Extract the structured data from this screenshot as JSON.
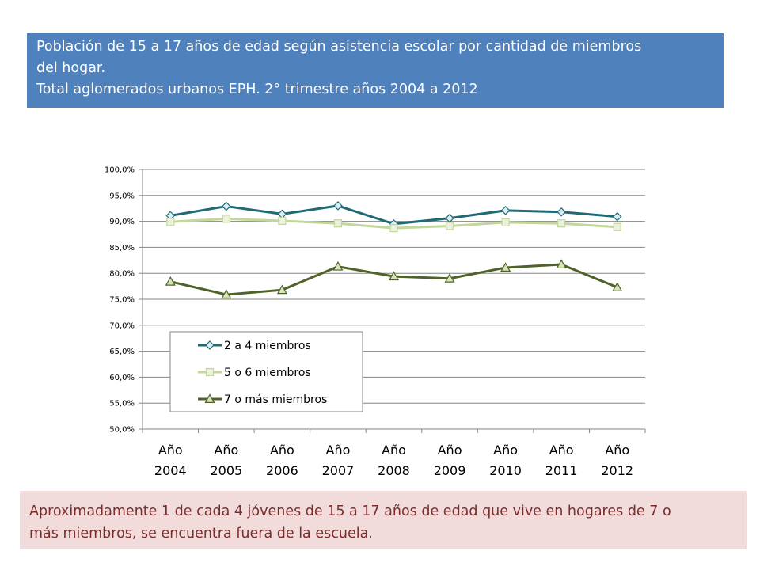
{
  "header": {
    "title_line1": "Población de 15 a 17 años de edad según asistencia escolar por cantidad de miembros",
    "title_line2": "del hogar.",
    "title_line3": "Total aglomerados urbanos EPH.  2° trimestre años 2004 a 2012"
  },
  "note": {
    "line1": "Aproximadamente 1 de cada 4 jóvenes de 15 a 17 años de edad que vive en hogares de 7 o",
    "line2": "más miembros, se encuentra fuera de la escuela."
  },
  "colors": {
    "title_bg": "#4f81bd",
    "note_bg": "#f2dcdb",
    "note_text": "#7b2c2c"
  },
  "chart_data": {
    "type": "line",
    "title": "",
    "xlabel": "",
    "ylabel": "",
    "categories": [
      [
        "Año",
        "2004"
      ],
      [
        "Año",
        "2005"
      ],
      [
        "Año",
        "2006"
      ],
      [
        "Año",
        "2007"
      ],
      [
        "Año",
        "2008"
      ],
      [
        "Año",
        "2009"
      ],
      [
        "Año",
        "2010"
      ],
      [
        "Año",
        "2011"
      ],
      [
        "Año",
        "2012"
      ]
    ],
    "y_ticks": [
      "50,0%",
      "55,0%",
      "60,0%",
      "65,0%",
      "70,0%",
      "75,0%",
      "80,0%",
      "85,0%",
      "90,0%",
      "95,0%",
      "100,0%"
    ],
    "ylim": [
      50,
      100
    ],
    "grid": true,
    "legend_position": "bottom-left inside plot",
    "series": [
      {
        "name": "2 a 4 miembros",
        "marker": "diamond",
        "color": "#1f6b75",
        "values": [
          91.1,
          92.9,
          91.4,
          93.0,
          89.5,
          90.6,
          92.1,
          91.8,
          90.9
        ]
      },
      {
        "name": "5 o 6 miembros",
        "marker": "square",
        "color": "#c4d79b",
        "values": [
          89.9,
          90.5,
          90.1,
          89.6,
          88.7,
          89.1,
          89.8,
          89.6,
          88.9
        ]
      },
      {
        "name": "7 o más miembros",
        "marker": "triangle",
        "color": "#4f6228",
        "values": [
          78.4,
          75.9,
          76.8,
          81.3,
          79.4,
          79.0,
          81.1,
          81.7,
          77.3
        ]
      }
    ]
  }
}
